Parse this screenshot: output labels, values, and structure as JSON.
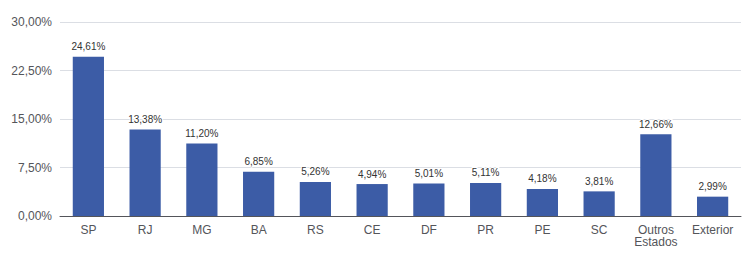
{
  "chart_data": {
    "type": "bar",
    "categories": [
      "SP",
      "RJ",
      "MG",
      "BA",
      "RS",
      "CE",
      "DF",
      "PR",
      "PE",
      "SC",
      "Outros\nEstados",
      "Exterior"
    ],
    "values": [
      24.61,
      13.38,
      11.2,
      6.85,
      5.26,
      4.94,
      5.01,
      5.11,
      4.18,
      3.81,
      12.66,
      2.99
    ],
    "value_labels": [
      "24,61%",
      "13,38%",
      "11,20%",
      "6,85%",
      "5,26%",
      "4,94%",
      "5,01%",
      "5,11%",
      "4,18%",
      "3,81%",
      "12,66%",
      "2,99%"
    ],
    "color": "#3C5CA6",
    "ylim": [
      0,
      30
    ],
    "yticks": [
      {
        "value": 0,
        "label": "0,00%"
      },
      {
        "value": 7.5,
        "label": "7,50%"
      },
      {
        "value": 15.0,
        "label": "15,00%"
      },
      {
        "value": 22.5,
        "label": "22,50%"
      },
      {
        "value": 30.0,
        "label": "30,00%"
      }
    ],
    "grid": true,
    "data_labels": true
  }
}
